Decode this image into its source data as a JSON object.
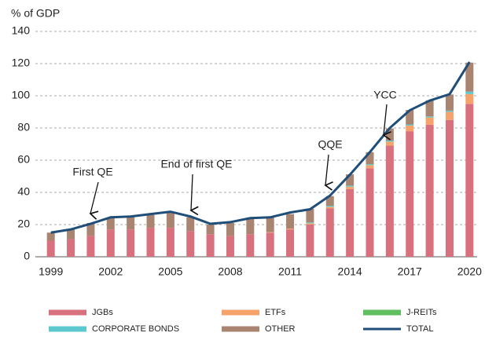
{
  "chart_data": {
    "type": "bar",
    "y_label": "% of GDP",
    "categories": [
      "1999",
      null,
      null,
      "2002",
      null,
      null,
      "2005",
      null,
      null,
      "2008",
      null,
      null,
      "2011",
      null,
      null,
      "2014",
      null,
      null,
      "2017",
      null,
      null,
      "2020"
    ],
    "series": [
      {
        "name": "JGBs",
        "color": "#d9707e",
        "values": [
          10,
          11,
          13,
          17,
          17,
          18,
          18,
          16,
          14,
          13,
          14,
          15,
          17,
          20,
          30,
          42,
          55,
          69,
          78,
          82,
          85,
          95
        ]
      },
      {
        "name": "ETFs",
        "color": "#f5a36b",
        "values": [
          0,
          0,
          0,
          0,
          0,
          0,
          0,
          0,
          0,
          0,
          0,
          0.3,
          0.5,
          0.7,
          1,
          1.5,
          1.8,
          2.5,
          3.5,
          4.5,
          5,
          6
        ]
      },
      {
        "name": "J-REITs",
        "color": "#5fbf5f",
        "values": [
          0,
          0,
          0,
          0,
          0,
          0,
          0,
          0,
          0,
          0,
          0,
          0,
          0,
          0.1,
          0.1,
          0.1,
          0.1,
          0.1,
          0.1,
          0.1,
          0.1,
          0.1
        ]
      },
      {
        "name": "CORPORATE BONDS",
        "color": "#5ec8d0",
        "values": [
          0,
          0,
          0,
          0,
          0,
          0,
          0,
          0,
          0,
          0,
          0,
          0,
          0,
          0.5,
          0.6,
          0.6,
          0.6,
          0.6,
          0.6,
          0.6,
          0.7,
          1.5
        ]
      },
      {
        "name": "OTHER",
        "color": "#a98470",
        "values": [
          5,
          6,
          8,
          7.5,
          8,
          8,
          10,
          8.5,
          6,
          8,
          10,
          9,
          9,
          8.5,
          6,
          7,
          7.5,
          7.5,
          9,
          10,
          10,
          18
        ]
      },
      {
        "name": "TOTAL",
        "type": "line",
        "color": "#1f4e79",
        "values": [
          15,
          17,
          20.5,
          24.5,
          25,
          26.5,
          28,
          25,
          20.5,
          21.5,
          24,
          24.5,
          27.5,
          29.5,
          38,
          51,
          65,
          80,
          91,
          97,
          101,
          121
        ]
      }
    ],
    "annotations": [
      "First QE",
      "End of first QE",
      "QQE",
      "YCC"
    ],
    "ylim": [
      0,
      140
    ],
    "yticks": [
      0,
      20,
      40,
      60,
      80,
      100,
      120,
      140
    ],
    "grid": true
  }
}
